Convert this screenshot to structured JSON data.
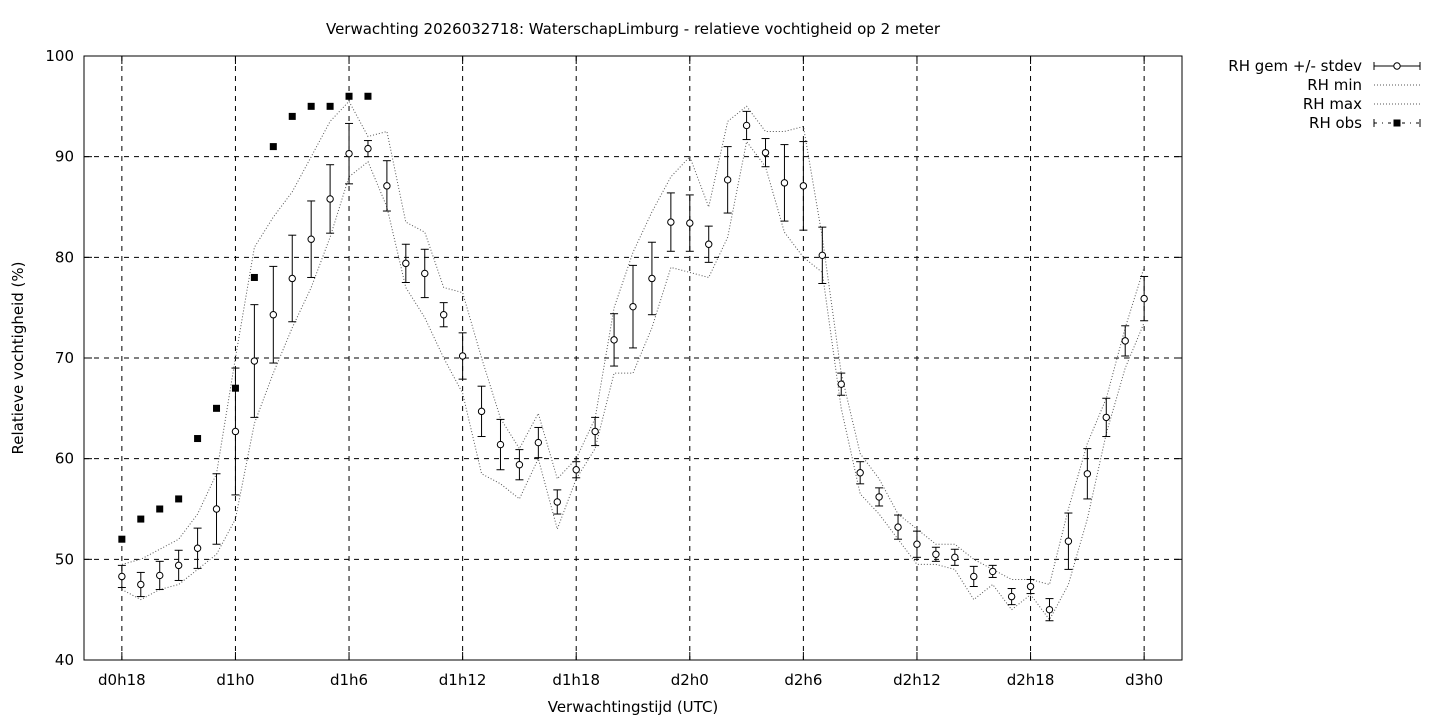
{
  "chart_data": {
    "type": "line",
    "title": "Verwachting 2026032718: WaterschapLimburg - relatieve vochtigheid op 2 meter",
    "xlabel": "Verwachtingstijd (UTC)",
    "ylabel": "Relatieve vochtigheid (%)",
    "ylim": [
      40,
      100
    ],
    "xlim": [
      -2,
      56
    ],
    "y_ticks": [
      "40",
      "50",
      "60",
      "70",
      "80",
      "90",
      "100"
    ],
    "x_ticks": [
      {
        "value": 0,
        "label": "d0h18"
      },
      {
        "value": 6,
        "label": "d1h0"
      },
      {
        "value": 12,
        "label": "d1h6"
      },
      {
        "value": 18,
        "label": "d1h12"
      },
      {
        "value": 24,
        "label": "d1h18"
      },
      {
        "value": 30,
        "label": "d2h0"
      },
      {
        "value": 36,
        "label": "d2h6"
      },
      {
        "value": 42,
        "label": "d2h12"
      },
      {
        "value": 48,
        "label": "d2h18"
      },
      {
        "value": 54,
        "label": "d3h0"
      }
    ],
    "grid": true,
    "legend_position": "outside-top-right",
    "series": [
      {
        "name": "RH gem +/- stdev",
        "style": "errorbars",
        "x": [
          0,
          1,
          2,
          3,
          4,
          5,
          6,
          7,
          8,
          9,
          10,
          11,
          12,
          13,
          14,
          15,
          16,
          17,
          18,
          19,
          20,
          21,
          22,
          23,
          24,
          25,
          26,
          27,
          28,
          29,
          30,
          31,
          32,
          33,
          34,
          35,
          36,
          37,
          38,
          39,
          40,
          41,
          42,
          43,
          44,
          45,
          46,
          47,
          48,
          49,
          50,
          51,
          52,
          53,
          54
        ],
        "y": [
          48.3,
          47.5,
          48.4,
          49.4,
          51.1,
          55.0,
          62.7,
          69.7,
          74.3,
          77.9,
          81.8,
          85.8,
          90.3,
          90.8,
          87.1,
          79.4,
          78.4,
          74.3,
          70.2,
          64.7,
          61.4,
          59.4,
          61.6,
          55.7,
          58.9,
          62.7,
          71.8,
          75.1,
          77.9,
          83.5,
          83.4,
          81.3,
          87.7,
          93.1,
          90.4,
          87.4,
          87.1,
          80.2,
          67.4,
          58.6,
          56.2,
          53.2,
          51.5,
          50.5,
          50.2,
          48.3,
          48.8,
          46.3,
          47.3,
          45.0,
          51.8,
          58.5,
          64.1,
          71.7,
          75.9
        ],
        "stdev": [
          1.1,
          1.2,
          1.4,
          1.5,
          2.0,
          3.5,
          6.3,
          5.6,
          4.8,
          4.3,
          3.8,
          3.4,
          3.0,
          0.8,
          2.5,
          1.9,
          2.4,
          1.2,
          2.3,
          2.5,
          2.5,
          1.5,
          1.5,
          1.2,
          0.8,
          1.4,
          2.6,
          4.1,
          3.6,
          2.9,
          2.8,
          1.8,
          3.3,
          1.4,
          1.4,
          3.8,
          4.4,
          2.8,
          1.1,
          1.1,
          0.9,
          1.2,
          1.3,
          0.7,
          0.8,
          1.0,
          0.6,
          0.8,
          0.7,
          1.1,
          2.8,
          2.5,
          1.9,
          1.5,
          2.2
        ]
      },
      {
        "name": "RH min",
        "style": "dotted",
        "x": [
          0,
          1,
          2,
          3,
          4,
          5,
          6,
          7,
          8,
          9,
          10,
          11,
          12,
          13,
          14,
          15,
          16,
          17,
          18,
          19,
          20,
          21,
          22,
          23,
          24,
          25,
          26,
          27,
          28,
          29,
          30,
          31,
          32,
          33,
          34,
          35,
          36,
          37,
          38,
          39,
          40,
          41,
          42,
          43,
          44,
          45,
          46,
          47,
          48,
          49,
          50,
          51,
          52,
          53,
          54
        ],
        "y": [
          47.0,
          46.0,
          47.0,
          47.5,
          49.0,
          50.5,
          54.0,
          63.5,
          68.5,
          73.0,
          77.0,
          82.0,
          88.0,
          89.5,
          85.0,
          77.0,
          74.0,
          70.0,
          66.5,
          58.5,
          57.5,
          56.0,
          60.0,
          53.0,
          58.0,
          61.0,
          68.5,
          68.5,
          73.0,
          79.0,
          78.5,
          78.0,
          82.0,
          91.5,
          89.0,
          82.5,
          80.0,
          78.5,
          65.0,
          56.5,
          54.5,
          52.0,
          49.5,
          49.5,
          49.0,
          46.0,
          47.5,
          45.0,
          46.5,
          44.0,
          47.5,
          54.0,
          62.5,
          69.0,
          73.5
        ]
      },
      {
        "name": "RH max",
        "style": "dotted",
        "x": [
          0,
          1,
          2,
          3,
          4,
          5,
          6,
          7,
          8,
          9,
          10,
          11,
          12,
          13,
          14,
          15,
          16,
          17,
          18,
          19,
          20,
          21,
          22,
          23,
          24,
          25,
          26,
          27,
          28,
          29,
          30,
          31,
          32,
          33,
          34,
          35,
          36,
          37,
          38,
          39,
          40,
          41,
          42,
          43,
          44,
          45,
          46,
          47,
          48,
          49,
          50,
          51,
          52,
          53,
          54
        ],
        "y": [
          49.5,
          50.0,
          51.0,
          52.0,
          54.5,
          58.5,
          70.0,
          81.0,
          84.0,
          86.5,
          90.0,
          93.5,
          95.5,
          92.0,
          92.5,
          83.5,
          82.5,
          77.0,
          76.5,
          70.0,
          64.0,
          61.0,
          64.5,
          58.0,
          60.0,
          64.0,
          75.0,
          80.5,
          84.5,
          88.0,
          90.0,
          85.0,
          93.5,
          95.0,
          92.5,
          92.5,
          93.0,
          82.0,
          68.5,
          60.5,
          58.0,
          54.5,
          53.0,
          51.5,
          51.5,
          50.0,
          49.0,
          48.0,
          48.0,
          47.5,
          55.0,
          61.5,
          66.0,
          73.0,
          79.0
        ]
      },
      {
        "name": "RH obs",
        "style": "squares",
        "x": [
          0,
          1,
          2,
          3,
          4,
          5,
          6,
          7,
          8,
          9,
          10,
          11,
          12,
          13
        ],
        "y": [
          52,
          54,
          55,
          56,
          62,
          65,
          67,
          78,
          91,
          94,
          95,
          95,
          96,
          96
        ]
      }
    ]
  }
}
